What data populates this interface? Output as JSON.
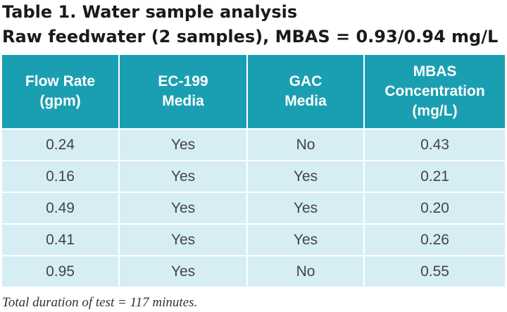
{
  "title": "Table 1. Water sample analysis",
  "subtitle": "Raw feedwater (2 samples), MBAS = 0.93/0.94 mg/L",
  "table": {
    "headers": [
      "Flow Rate\n(gpm)",
      "EC-199\nMedia",
      "GAC\nMedia",
      "MBAS\nConcentration\n(mg/L)"
    ],
    "rows": [
      [
        "0.24",
        "Yes",
        "No",
        "0.43"
      ],
      [
        "0.16",
        "Yes",
        "Yes",
        "0.21"
      ],
      [
        "0.49",
        "Yes",
        "Yes",
        "0.20"
      ],
      [
        "0.41",
        "Yes",
        "Yes",
        "0.26"
      ],
      [
        "0.95",
        "Yes",
        "No",
        "0.55"
      ]
    ]
  },
  "footnote": "Total duration of test = 117 minutes.",
  "colors": {
    "header_bg": "#1a9fb2",
    "row_bg": "#d6eef3",
    "title_text": "#1a1a1a"
  }
}
